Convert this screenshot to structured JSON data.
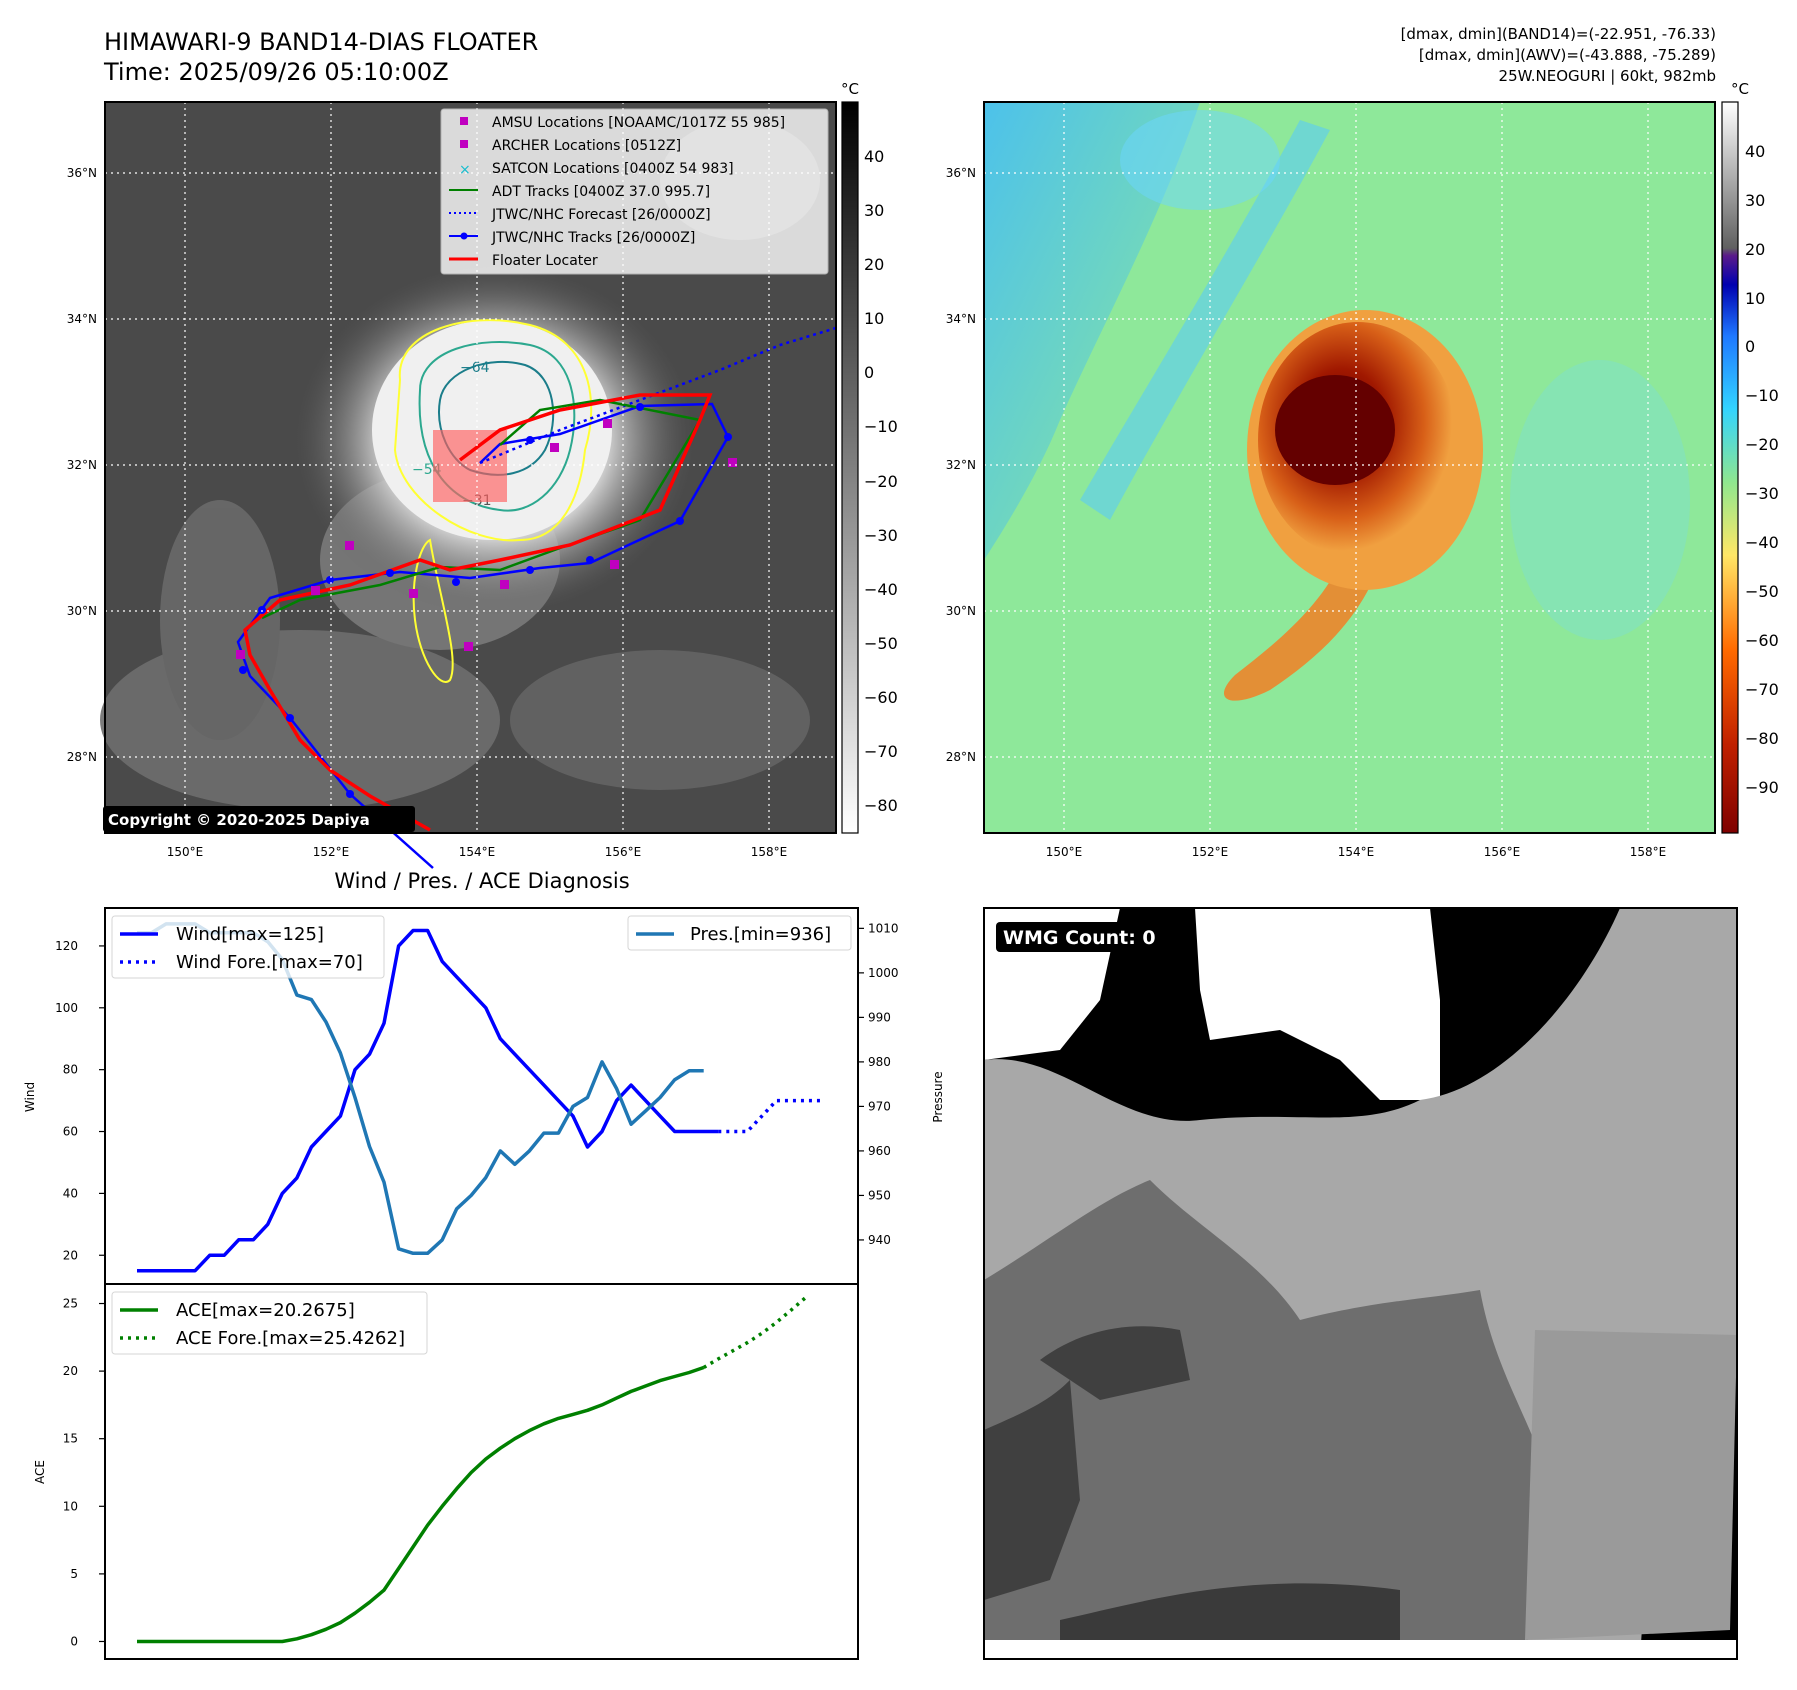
{
  "header": {
    "title_line1": "HIMAWARI-9 BAND14-DIAS FLOATER",
    "title_line2": "Time: 2025/09/26 05:10:00Z",
    "stats_line1": "[dmax, dmin](BAND14)=(-22.951, -76.33)",
    "stats_line2": "[dmax, dmin](AWV)=(-43.888, -75.289)",
    "stats_line3": "25W.NEOGURI | 60kt, 982mb"
  },
  "copyright": "Copyright © 2020-2025 Dapiya",
  "maps": {
    "lat_labels": [
      "36°N",
      "34°N",
      "32°N",
      "30°N",
      "28°N"
    ],
    "lon_labels": [
      "150°E",
      "152°E",
      "154°E",
      "156°E",
      "158°E"
    ],
    "unit": "°C"
  },
  "colorbar_left": {
    "unit": "°C",
    "ticks": [
      "40",
      "30",
      "20",
      "10",
      "0",
      "−10",
      "−20",
      "−30",
      "−40",
      "−50",
      "−60",
      "−70",
      "−80"
    ]
  },
  "colorbar_right": {
    "unit": "°C",
    "ticks": [
      "40",
      "30",
      "20",
      "10",
      "0",
      "−10",
      "−20",
      "−30",
      "−40",
      "−50",
      "−60",
      "−70",
      "−80",
      "−90"
    ]
  },
  "legend": {
    "items": [
      "AMSU Locations [NOAAMC/1017Z 55 985]",
      "ARCHER Locations [0512Z]",
      "SATCON Locations [0400Z 54 983]",
      "ADT Tracks [0400Z 37.0 995.7]",
      "JTWC/NHC Forecast [26/0000Z]",
      "JTWC/NHC Tracks [26/0000Z]",
      "Floater Locater"
    ],
    "colors": [
      "#c000c0",
      "#c000c0",
      "#17becf",
      "#008000",
      "#0000ff",
      "#0000ff",
      "#ff0000"
    ]
  },
  "contour_labels": [
    "−64",
    "−54",
    "−31"
  ],
  "diag_title": "Wind / Pres. / ACE Diagnosis",
  "wmg_label": "WMG Count: 0",
  "chart_data": [
    {
      "type": "line",
      "title": "Wind / Pres. / ACE Diagnosis",
      "ylabel": "Wind",
      "ylabel_right": "Pressure",
      "ylim": [
        12,
        130
      ],
      "ylim_right": [
        931,
        1013
      ],
      "yticks": [
        20,
        40,
        60,
        80,
        100,
        120
      ],
      "yticks_right": [
        940,
        950,
        960,
        970,
        980,
        990,
        1000,
        1010
      ],
      "legend_left": [
        "Wind[max=125]",
        "Wind Fore.[max=70]"
      ],
      "legend_right": [
        "Pres.[min=936]"
      ],
      "series": [
        {
          "name": "Wind[max=125]",
          "color": "#0000ff",
          "style": "solid",
          "values": [
            15,
            15,
            15,
            15,
            15,
            20,
            20,
            25,
            25,
            30,
            40,
            45,
            55,
            60,
            65,
            80,
            85,
            95,
            120,
            125,
            125,
            115,
            110,
            105,
            100,
            90,
            85,
            80,
            75,
            70,
            65,
            55,
            60,
            70,
            75,
            70,
            65,
            60,
            60,
            60,
            60
          ]
        },
        {
          "name": "Wind Fore.[max=70]",
          "color": "#0000ff",
          "style": "dotted",
          "values": [
            60,
            60,
            60,
            65,
            70,
            70,
            70,
            70
          ],
          "start_index": 40
        },
        {
          "name": "Pres.[min=936]",
          "color": "#1f77b4",
          "style": "solid",
          "axis": "right",
          "values": [
            1009,
            1009,
            1011,
            1011,
            1011,
            1009,
            1009,
            1009,
            1009,
            1007,
            1003,
            995,
            994,
            989,
            982,
            972,
            961,
            953,
            938,
            937,
            937,
            940,
            947,
            950,
            954,
            960,
            957,
            960,
            964,
            964,
            970,
            972,
            980,
            974,
            966,
            969,
            972,
            976,
            978,
            978
          ]
        }
      ]
    },
    {
      "type": "line",
      "ylabel": "ACE",
      "ylim": [
        -1,
        26
      ],
      "yticks": [
        0,
        5,
        10,
        15,
        20,
        25
      ],
      "legend": [
        "ACE[max=20.2675]",
        "ACE Fore.[max=25.4262]"
      ],
      "series": [
        {
          "name": "ACE[max=20.2675]",
          "color": "#008000",
          "style": "solid",
          "values": [
            0,
            0,
            0,
            0,
            0,
            0,
            0,
            0,
            0,
            0,
            0,
            0.2,
            0.5,
            0.9,
            1.4,
            2.1,
            2.9,
            3.8,
            5.4,
            7.0,
            8.6,
            10.0,
            11.3,
            12.5,
            13.5,
            14.3,
            15.0,
            15.6,
            16.1,
            16.5,
            16.8,
            17.1,
            17.5,
            18.0,
            18.5,
            18.9,
            19.3,
            19.6,
            19.9,
            20.27
          ]
        },
        {
          "name": "ACE Fore.[max=25.4262]",
          "color": "#008000",
          "style": "dotted",
          "values": [
            20.27,
            20.9,
            21.5,
            22.1,
            22.8,
            23.6,
            24.5,
            25.43
          ],
          "start_index": 39
        }
      ]
    }
  ]
}
